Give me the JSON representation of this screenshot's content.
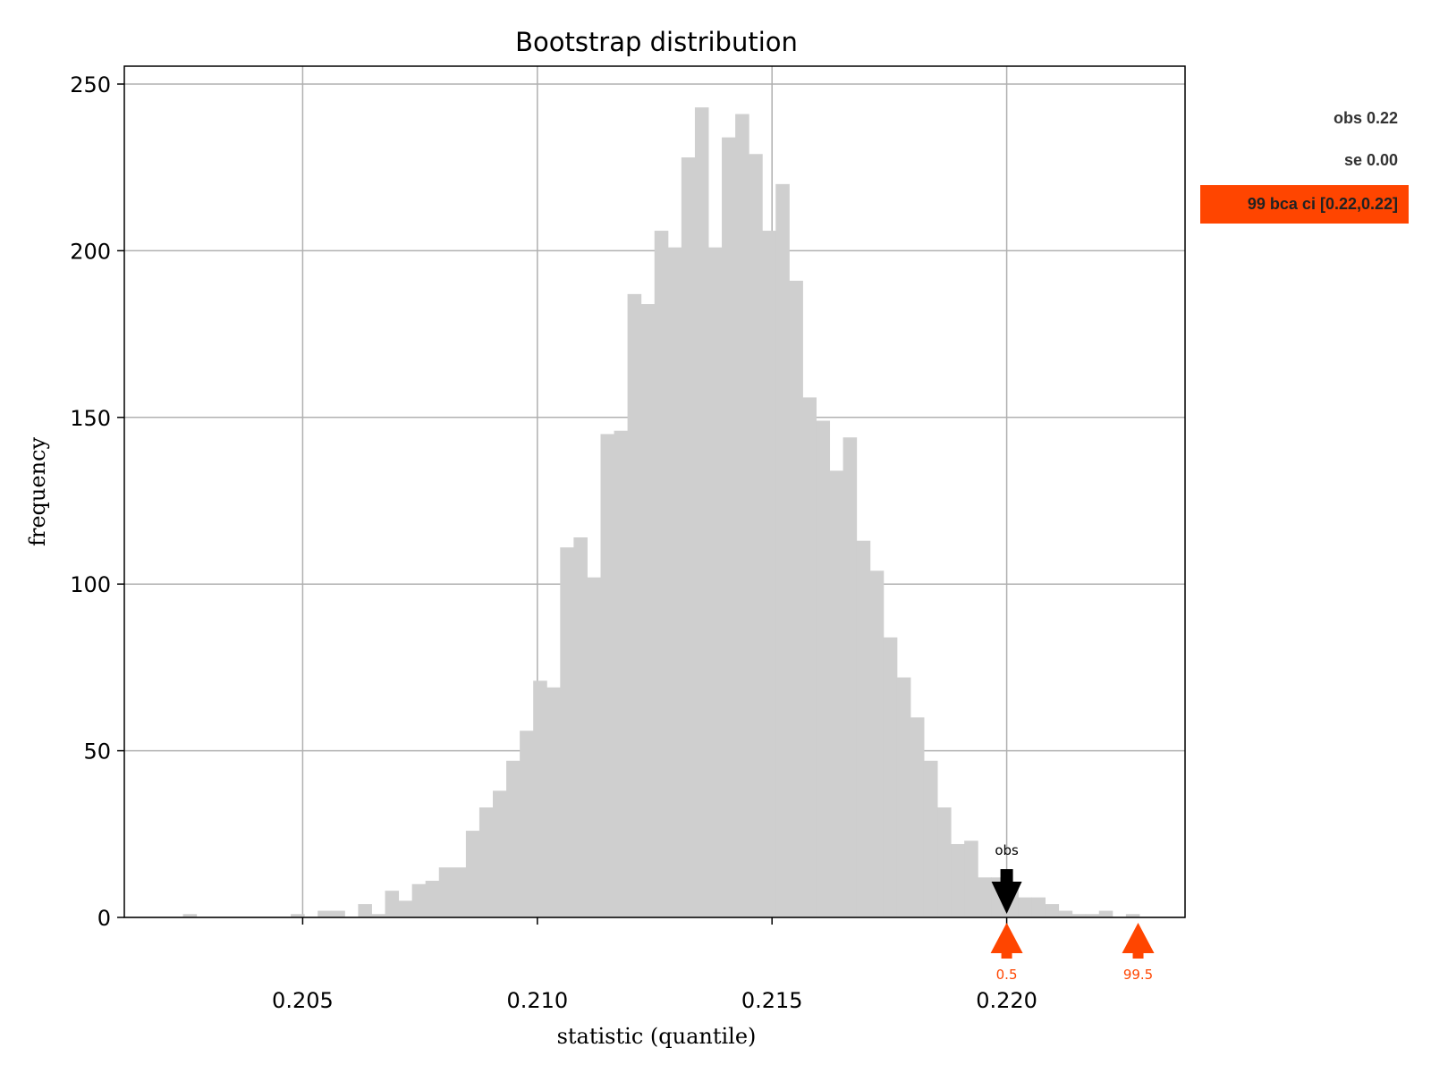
{
  "chart_data": {
    "type": "bar",
    "title": "Bootstrap distribution",
    "xlabel": "statistic (quantile)",
    "ylabel": "frequency",
    "xlim": [
      0.2012,
      0.2238
    ],
    "ylim": [
      0,
      255
    ],
    "xticks": [
      0.205,
      0.21,
      0.215,
      0.22
    ],
    "xtick_labels": [
      "0.205",
      "0.210",
      "0.215",
      "0.220"
    ],
    "yticks": [
      0,
      50,
      100,
      150,
      200,
      250
    ],
    "ytick_labels": [
      "0",
      "50",
      "100",
      "150",
      "200",
      "250"
    ],
    "grid": true,
    "bar_color": "#cfcfcf",
    "bin_start": 0.20245,
    "bin_width": 0.000287,
    "values": [
      1,
      0,
      0,
      0,
      0,
      0,
      0,
      0,
      1,
      0,
      2,
      2,
      0,
      4,
      1,
      8,
      5,
      10,
      11,
      15,
      15,
      26,
      33,
      38,
      47,
      56,
      71,
      69,
      111,
      114,
      102,
      145,
      146,
      187,
      184,
      206,
      201,
      228,
      243,
      201,
      234,
      241,
      229,
      206,
      220,
      191,
      156,
      149,
      134,
      144,
      113,
      104,
      84,
      72,
      60,
      47,
      33,
      22,
      23,
      12,
      12,
      10,
      6,
      6,
      4,
      2,
      1,
      1,
      2,
      0,
      1
    ],
    "annotations": {
      "obs": {
        "label": "obs",
        "x": 0.22,
        "color": "#000000"
      },
      "ci_markers": [
        {
          "label": "0.5",
          "x": 0.22,
          "color": "#ff4500"
        },
        {
          "label": "99.5",
          "x": 0.2228,
          "color": "#ff4500"
        }
      ]
    }
  },
  "side_panel": {
    "obs_text": "obs 0.22",
    "se_text": "se 0.00",
    "ci_text": "99 bca ci [0.22,0.22]",
    "ci_color": "#ff4500"
  }
}
